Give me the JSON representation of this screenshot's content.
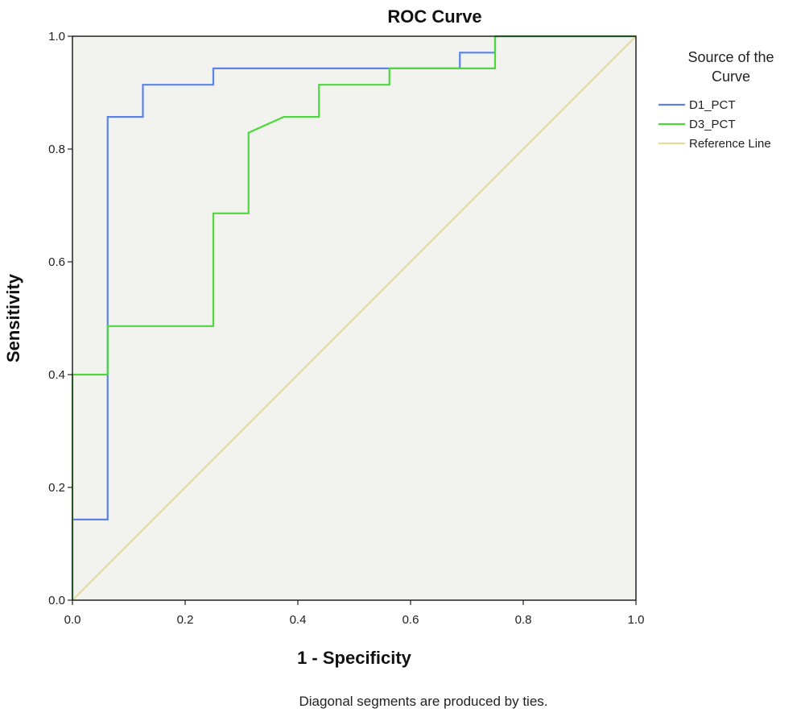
{
  "chart_data": {
    "type": "line",
    "title": "ROC Curve",
    "xlabel": "1 - Specificity",
    "ylabel": "Sensitivity",
    "xlim": [
      0.0,
      1.0
    ],
    "ylim": [
      0.0,
      1.0
    ],
    "x_ticks": [
      0.0,
      0.2,
      0.4,
      0.6,
      0.8,
      1.0
    ],
    "y_ticks": [
      0.0,
      0.2,
      0.4,
      0.6,
      0.8,
      1.0
    ],
    "x_tick_labels": [
      "0.0",
      "0.2",
      "0.4",
      "0.6",
      "0.8",
      "1.0"
    ],
    "y_tick_labels": [
      "0.0",
      "0.2",
      "0.4",
      "0.6",
      "0.8",
      "1.0"
    ],
    "legend_title_lines": [
      "Source of the",
      "Curve"
    ],
    "legend_position": "right",
    "footnote": "Diagonal segments are produced by ties.",
    "series": [
      {
        "name": "D1_PCT",
        "color": "#5a82e8",
        "x": [
          0.0,
          0.0,
          0.0625,
          0.0625,
          0.125,
          0.125,
          0.25,
          0.25,
          0.6875,
          0.6875,
          0.75,
          0.75,
          1.0
        ],
        "y": [
          0.0,
          0.143,
          0.143,
          0.857,
          0.857,
          0.914,
          0.914,
          0.943,
          0.943,
          0.971,
          0.971,
          1.0,
          1.0
        ]
      },
      {
        "name": "D3_PCT",
        "color": "#4fd83c",
        "x": [
          0.0,
          0.0,
          0.0625,
          0.0625,
          0.25,
          0.25,
          0.3125,
          0.3125,
          0.375,
          0.4375,
          0.4375,
          0.5625,
          0.5625,
          0.75,
          0.75,
          1.0
        ],
        "y": [
          0.0,
          0.4,
          0.4,
          0.486,
          0.486,
          0.686,
          0.686,
          0.829,
          0.857,
          0.857,
          0.914,
          0.914,
          0.943,
          0.943,
          1.0,
          1.0
        ]
      },
      {
        "name": "Reference Line",
        "color": "#e2dd9a",
        "x": [
          0.0,
          1.0
        ],
        "y": [
          0.0,
          1.0
        ]
      }
    ]
  },
  "colors": {
    "plot_background": "#f2f2ee",
    "plot_border": "#222222"
  }
}
